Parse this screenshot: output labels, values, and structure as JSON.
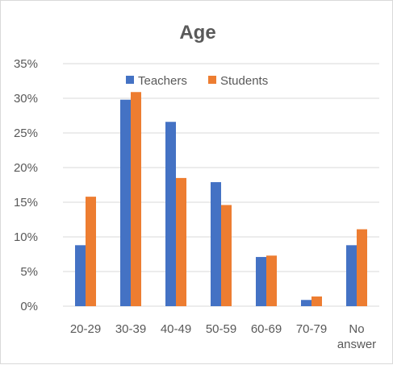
{
  "chart_data": {
    "type": "bar",
    "title": "Age",
    "categories": [
      [
        "20-29"
      ],
      [
        "30-39"
      ],
      [
        "40-49"
      ],
      [
        "50-59"
      ],
      [
        "60-69"
      ],
      [
        "70-79"
      ],
      [
        "No",
        "answer"
      ]
    ],
    "series": [
      {
        "name": "Teachers",
        "color": "#4472C4",
        "values": [
          8.8,
          29.8,
          26.6,
          17.9,
          7.1,
          0.9,
          8.8
        ]
      },
      {
        "name": "Students",
        "color": "#ED7D31",
        "values": [
          15.8,
          30.9,
          18.5,
          14.6,
          7.3,
          1.4,
          11.1
        ]
      }
    ],
    "ylim": [
      0,
      35
    ],
    "yticks": [
      0,
      5,
      10,
      15,
      20,
      25,
      30,
      35
    ],
    "ytick_labels": [
      "0%",
      "5%",
      "10%",
      "15%",
      "20%",
      "25%",
      "30%",
      "35%"
    ],
    "grid": true,
    "gridline_color": "#d9d9d9",
    "legend_position": "top"
  }
}
